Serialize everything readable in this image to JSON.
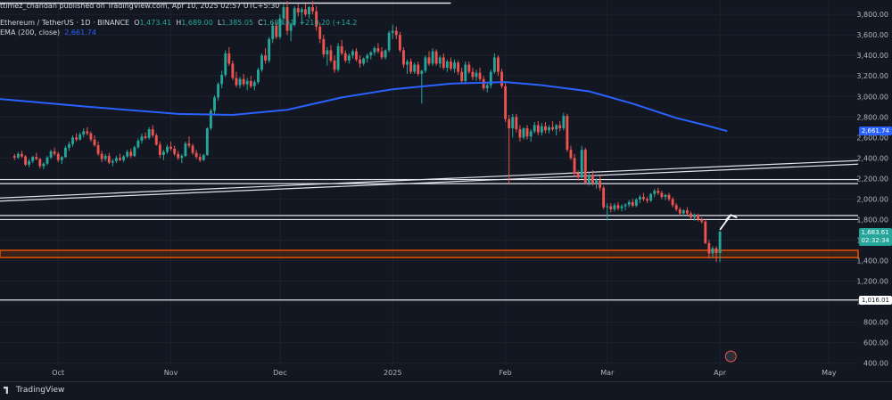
{
  "header": {
    "publisher_line": "ttimez_chandan published on TradingView.com, Apr 10, 2025 02:57 UTC+5:30",
    "symbol": "Ethereum / TetherUS · 1D · BINANCE",
    "open_label": "O",
    "open": "1,473.41",
    "high_label": "H",
    "high": "1,689.00",
    "low_label": "L",
    "low": "1,385.05",
    "close_label": "C",
    "close": "1,683.61",
    "change": "+210.20 (+14.2",
    "ema_label": "EMA (200, close)",
    "ema_value": "2,661.74"
  },
  "footer": {
    "brand": "TradingView"
  },
  "colors": {
    "bg": "#131722",
    "up": "#26a69a",
    "down": "#ef5350",
    "ema": "#2962ff",
    "zone": "#e65100",
    "grid": "#1e222d",
    "text": "#b2b5be"
  },
  "badges": {
    "ema": "2,661.74",
    "price": "1,683.61",
    "countdown": "02:32:34",
    "level": "1,016.01"
  },
  "chart_data": {
    "type": "candlestick",
    "title": "Ethereum / TetherUS · 1D · BINANCE",
    "y_ticks": [
      "3,800.00",
      "3,600.00",
      "3,400.00",
      "3,200.00",
      "3,000.00",
      "2,800.00",
      "2,600.00",
      "2,400.00",
      "2,200.00",
      "2,000.00",
      "1,800.00",
      "1,600.00",
      "1,400.00",
      "1,200.00",
      "1,000.00",
      "800.00",
      "600.00",
      "400.00"
    ],
    "y_tick_values": [
      3800,
      3600,
      3400,
      3200,
      3000,
      2800,
      2600,
      2400,
      2200,
      2000,
      1800,
      1600,
      1400,
      1200,
      1000,
      800,
      600,
      400
    ],
    "x_ticks": [
      "Oct",
      "Nov",
      "Dec",
      "2025",
      "Feb",
      "Mar",
      "Apr",
      "May"
    ],
    "x_tick_days": [
      12,
      43,
      73,
      104,
      135,
      163,
      194,
      224
    ],
    "ylim": [
      380,
      3940
    ],
    "xlim": [
      -4,
      232
    ],
    "ema200": [
      [
        -4,
        2975
      ],
      [
        20,
        2900
      ],
      [
        45,
        2830
      ],
      [
        60,
        2820
      ],
      [
        75,
        2870
      ],
      [
        90,
        2990
      ],
      [
        104,
        3070
      ],
      [
        120,
        3125
      ],
      [
        135,
        3140
      ],
      [
        145,
        3110
      ],
      [
        158,
        3050
      ],
      [
        170,
        2930
      ],
      [
        182,
        2790
      ],
      [
        190,
        2720
      ],
      [
        196,
        2661.74
      ]
    ],
    "support_zone": [
      1430,
      1500
    ],
    "horizontal_levels": [
      1800,
      1840,
      2150,
      2190,
      1016.01
    ],
    "trend_channel": [
      [
        [
          -4,
          1980
        ],
        [
          232,
          2340
        ]
      ],
      [
        [
          -4,
          2010
        ],
        [
          232,
          2375
        ]
      ]
    ],
    "top_box_level": 3910,
    "arrow": {
      "from": [
        194,
        1700
      ],
      "to": [
        197,
        1845
      ]
    },
    "candles": [
      [
        0,
        2420,
        2440,
        2380,
        2405
      ],
      [
        1,
        2405,
        2460,
        2390,
        2440
      ],
      [
        2,
        2440,
        2470,
        2400,
        2415
      ],
      [
        3,
        2415,
        2430,
        2320,
        2335
      ],
      [
        4,
        2335,
        2390,
        2310,
        2370
      ],
      [
        5,
        2370,
        2420,
        2350,
        2410
      ],
      [
        6,
        2410,
        2450,
        2380,
        2390
      ],
      [
        7,
        2390,
        2400,
        2300,
        2320
      ],
      [
        8,
        2320,
        2360,
        2290,
        2345
      ],
      [
        9,
        2345,
        2420,
        2330,
        2405
      ],
      [
        10,
        2405,
        2480,
        2390,
        2465
      ],
      [
        11,
        2465,
        2500,
        2420,
        2440
      ],
      [
        12,
        2440,
        2460,
        2360,
        2380
      ],
      [
        13,
        2380,
        2420,
        2340,
        2410
      ],
      [
        14,
        2410,
        2520,
        2400,
        2500
      ],
      [
        15,
        2500,
        2560,
        2470,
        2535
      ],
      [
        16,
        2535,
        2620,
        2510,
        2600
      ],
      [
        17,
        2600,
        2640,
        2560,
        2580
      ],
      [
        18,
        2580,
        2650,
        2570,
        2630
      ],
      [
        19,
        2630,
        2690,
        2600,
        2660
      ],
      [
        20,
        2660,
        2700,
        2620,
        2640
      ],
      [
        21,
        2640,
        2660,
        2560,
        2580
      ],
      [
        22,
        2580,
        2620,
        2510,
        2525
      ],
      [
        23,
        2525,
        2560,
        2420,
        2440
      ],
      [
        24,
        2440,
        2470,
        2360,
        2390
      ],
      [
        25,
        2390,
        2440,
        2370,
        2420
      ],
      [
        26,
        2420,
        2450,
        2340,
        2355
      ],
      [
        27,
        2355,
        2390,
        2320,
        2370
      ],
      [
        28,
        2370,
        2420,
        2350,
        2400
      ],
      [
        29,
        2400,
        2440,
        2370,
        2380
      ],
      [
        30,
        2380,
        2430,
        2360,
        2415
      ],
      [
        31,
        2415,
        2480,
        2400,
        2460
      ],
      [
        32,
        2460,
        2490,
        2400,
        2420
      ],
      [
        33,
        2420,
        2520,
        2410,
        2505
      ],
      [
        34,
        2505,
        2590,
        2490,
        2570
      ],
      [
        35,
        2570,
        2640,
        2540,
        2610
      ],
      [
        36,
        2610,
        2650,
        2580,
        2595
      ],
      [
        37,
        2595,
        2700,
        2580,
        2680
      ],
      [
        38,
        2680,
        2720,
        2600,
        2620
      ],
      [
        39,
        2620,
        2640,
        2520,
        2530
      ],
      [
        40,
        2530,
        2560,
        2400,
        2430
      ],
      [
        41,
        2430,
        2480,
        2380,
        2460
      ],
      [
        42,
        2460,
        2530,
        2440,
        2510
      ],
      [
        43,
        2510,
        2560,
        2470,
        2490
      ],
      [
        44,
        2490,
        2520,
        2420,
        2440
      ],
      [
        45,
        2440,
        2470,
        2380,
        2400
      ],
      [
        46,
        2400,
        2440,
        2350,
        2420
      ],
      [
        47,
        2420,
        2560,
        2410,
        2540
      ],
      [
        48,
        2540,
        2610,
        2500,
        2520
      ],
      [
        49,
        2520,
        2540,
        2430,
        2450
      ],
      [
        50,
        2450,
        2480,
        2390,
        2410
      ],
      [
        51,
        2410,
        2440,
        2360,
        2380
      ],
      [
        52,
        2380,
        2440,
        2370,
        2430
      ],
      [
        53,
        2430,
        2700,
        2420,
        2690
      ],
      [
        54,
        2690,
        2880,
        2670,
        2860
      ],
      [
        55,
        2860,
        3010,
        2830,
        2990
      ],
      [
        56,
        2990,
        3140,
        2960,
        3120
      ],
      [
        57,
        3120,
        3250,
        3080,
        3210
      ],
      [
        58,
        3210,
        3450,
        3190,
        3420
      ],
      [
        59,
        3420,
        3480,
        3300,
        3320
      ],
      [
        60,
        3320,
        3350,
        3160,
        3180
      ],
      [
        61,
        3180,
        3240,
        3090,
        3110
      ],
      [
        62,
        3110,
        3190,
        3080,
        3170
      ],
      [
        63,
        3170,
        3220,
        3100,
        3120
      ],
      [
        64,
        3120,
        3180,
        3060,
        3150
      ],
      [
        65,
        3150,
        3200,
        3080,
        3100
      ],
      [
        66,
        3100,
        3160,
        3060,
        3140
      ],
      [
        67,
        3140,
        3280,
        3120,
        3260
      ],
      [
        68,
        3260,
        3420,
        3240,
        3400
      ],
      [
        69,
        3400,
        3470,
        3320,
        3350
      ],
      [
        70,
        3350,
        3580,
        3330,
        3560
      ],
      [
        71,
        3560,
        3720,
        3520,
        3690
      ],
      [
        72,
        3690,
        3720,
        3560,
        3580
      ],
      [
        73,
        3580,
        3800,
        3560,
        3760
      ],
      [
        74,
        3760,
        3900,
        3700,
        3870
      ],
      [
        75,
        3870,
        3930,
        3600,
        3640
      ],
      [
        76,
        3640,
        3720,
        3540,
        3700
      ],
      [
        77,
        3700,
        3880,
        3680,
        3860
      ],
      [
        78,
        3860,
        3900,
        3780,
        3820
      ],
      [
        79,
        3820,
        3870,
        3700,
        3850
      ],
      [
        80,
        3850,
        3900,
        3780,
        3800
      ],
      [
        81,
        3800,
        3880,
        3760,
        3870
      ],
      [
        82,
        3870,
        3930,
        3800,
        3830
      ],
      [
        83,
        3830,
        3880,
        3640,
        3680
      ],
      [
        84,
        3680,
        3720,
        3520,
        3560
      ],
      [
        85,
        3560,
        3600,
        3380,
        3410
      ],
      [
        86,
        3410,
        3480,
        3300,
        3450
      ],
      [
        87,
        3450,
        3500,
        3330,
        3350
      ],
      [
        88,
        3350,
        3400,
        3230,
        3260
      ],
      [
        89,
        3260,
        3520,
        3240,
        3490
      ],
      [
        90,
        3490,
        3550,
        3400,
        3420
      ],
      [
        91,
        3420,
        3450,
        3330,
        3350
      ],
      [
        92,
        3350,
        3420,
        3320,
        3400
      ],
      [
        93,
        3400,
        3460,
        3370,
        3440
      ],
      [
        94,
        3440,
        3470,
        3340,
        3360
      ],
      [
        95,
        3360,
        3400,
        3280,
        3320
      ],
      [
        96,
        3320,
        3380,
        3300,
        3370
      ],
      [
        97,
        3370,
        3420,
        3330,
        3400
      ],
      [
        98,
        3400,
        3440,
        3360,
        3430
      ],
      [
        99,
        3430,
        3490,
        3400,
        3470
      ],
      [
        100,
        3470,
        3520,
        3420,
        3440
      ],
      [
        101,
        3440,
        3480,
        3360,
        3380
      ],
      [
        102,
        3380,
        3460,
        3360,
        3450
      ],
      [
        103,
        3450,
        3640,
        3430,
        3620
      ],
      [
        104,
        3620,
        3700,
        3560,
        3640
      ],
      [
        105,
        3640,
        3680,
        3560,
        3600
      ],
      [
        106,
        3600,
        3630,
        3430,
        3450
      ],
      [
        107,
        3450,
        3480,
        3280,
        3310
      ],
      [
        108,
        3310,
        3360,
        3220,
        3340
      ],
      [
        109,
        3340,
        3370,
        3220,
        3240
      ],
      [
        110,
        3240,
        3330,
        3220,
        3310
      ],
      [
        111,
        3310,
        3340,
        3200,
        3220
      ],
      [
        112,
        3220,
        3260,
        2930,
        3250
      ],
      [
        113,
        3250,
        3400,
        3230,
        3380
      ],
      [
        114,
        3380,
        3440,
        3300,
        3320
      ],
      [
        115,
        3320,
        3470,
        3300,
        3440
      ],
      [
        116,
        3440,
        3460,
        3300,
        3320
      ],
      [
        117,
        3320,
        3400,
        3280,
        3380
      ],
      [
        118,
        3380,
        3420,
        3260,
        3280
      ],
      [
        119,
        3280,
        3360,
        3240,
        3340
      ],
      [
        120,
        3340,
        3380,
        3250,
        3270
      ],
      [
        121,
        3270,
        3360,
        3230,
        3330
      ],
      [
        122,
        3330,
        3350,
        3210,
        3240
      ],
      [
        123,
        3240,
        3280,
        3120,
        3150
      ],
      [
        124,
        3150,
        3340,
        3130,
        3310
      ],
      [
        125,
        3310,
        3340,
        3220,
        3240
      ],
      [
        126,
        3240,
        3280,
        3160,
        3190
      ],
      [
        127,
        3190,
        3260,
        3150,
        3230
      ],
      [
        128,
        3230,
        3280,
        3150,
        3170
      ],
      [
        129,
        3170,
        3200,
        3060,
        3080
      ],
      [
        130,
        3080,
        3140,
        3040,
        3110
      ],
      [
        131,
        3110,
        3260,
        3080,
        3240
      ],
      [
        132,
        3240,
        3420,
        3220,
        3380
      ],
      [
        133,
        3380,
        3400,
        3200,
        3240
      ],
      [
        134,
        3240,
        3270,
        3080,
        3100
      ],
      [
        135,
        3100,
        3140,
        2750,
        2780
      ],
      [
        136,
        2780,
        2820,
        2150,
        2690
      ],
      [
        137,
        2690,
        2830,
        2600,
        2800
      ],
      [
        138,
        2800,
        2830,
        2650,
        2680
      ],
      [
        139,
        2680,
        2720,
        2560,
        2600
      ],
      [
        140,
        2600,
        2700,
        2580,
        2690
      ],
      [
        141,
        2690,
        2720,
        2580,
        2610
      ],
      [
        142,
        2610,
        2680,
        2560,
        2660
      ],
      [
        143,
        2660,
        2750,
        2640,
        2720
      ],
      [
        144,
        2720,
        2760,
        2620,
        2650
      ],
      [
        145,
        2650,
        2740,
        2620,
        2710
      ],
      [
        146,
        2710,
        2750,
        2640,
        2670
      ],
      [
        147,
        2670,
        2720,
        2640,
        2700
      ],
      [
        148,
        2700,
        2760,
        2660,
        2680
      ],
      [
        149,
        2680,
        2730,
        2620,
        2720
      ],
      [
        150,
        2720,
        2760,
        2660,
        2690
      ],
      [
        151,
        2690,
        2840,
        2670,
        2810
      ],
      [
        152,
        2810,
        2830,
        2460,
        2480
      ],
      [
        153,
        2480,
        2520,
        2380,
        2400
      ],
      [
        154,
        2400,
        2440,
        2220,
        2250
      ],
      [
        155,
        2250,
        2280,
        2180,
        2210
      ],
      [
        156,
        2210,
        2520,
        2200,
        2480
      ],
      [
        157,
        2480,
        2500,
        2140,
        2160
      ],
      [
        158,
        2160,
        2260,
        2130,
        2230
      ],
      [
        159,
        2230,
        2280,
        2130,
        2150
      ],
      [
        160,
        2150,
        2200,
        2100,
        2180
      ],
      [
        161,
        2180,
        2230,
        2080,
        2110
      ],
      [
        162,
        2110,
        2130,
        1900,
        1920
      ],
      [
        163,
        1920,
        1960,
        1790,
        1930
      ],
      [
        164,
        1930,
        1960,
        1870,
        1900
      ],
      [
        165,
        1900,
        1960,
        1880,
        1940
      ],
      [
        166,
        1940,
        1970,
        1890,
        1910
      ],
      [
        167,
        1910,
        1950,
        1880,
        1930
      ],
      [
        168,
        1930,
        1960,
        1890,
        1945
      ],
      [
        169,
        1945,
        1990,
        1920,
        1970
      ],
      [
        170,
        1970,
        2000,
        1920,
        1935
      ],
      [
        171,
        1935,
        2010,
        1920,
        1995
      ],
      [
        172,
        1995,
        2040,
        1960,
        2020
      ],
      [
        173,
        2020,
        2060,
        1980,
        2000
      ],
      [
        174,
        2000,
        2020,
        1960,
        1985
      ],
      [
        175,
        1985,
        2060,
        1970,
        2050
      ],
      [
        176,
        2050,
        2100,
        2020,
        2080
      ],
      [
        177,
        2080,
        2110,
        2040,
        2060
      ],
      [
        178,
        2060,
        2080,
        2000,
        2020
      ],
      [
        179,
        2020,
        2050,
        1990,
        2040
      ],
      [
        180,
        2040,
        2060,
        1980,
        2000
      ],
      [
        181,
        2000,
        2020,
        1920,
        1940
      ],
      [
        182,
        1940,
        1960,
        1880,
        1900
      ],
      [
        183,
        1900,
        1920,
        1840,
        1860
      ],
      [
        184,
        1860,
        1900,
        1830,
        1890
      ],
      [
        185,
        1890,
        1920,
        1840,
        1860
      ],
      [
        186,
        1860,
        1880,
        1800,
        1820
      ],
      [
        187,
        1820,
        1860,
        1790,
        1845
      ],
      [
        188,
        1845,
        1860,
        1780,
        1800
      ],
      [
        189,
        1800,
        1820,
        1760,
        1780
      ],
      [
        190,
        1780,
        1800,
        1560,
        1570
      ],
      [
        191,
        1570,
        1600,
        1420,
        1470
      ],
      [
        192,
        1470,
        1540,
        1430,
        1520
      ],
      [
        193,
        1520,
        1540,
        1385,
        1473
      ],
      [
        194,
        1473.41,
        1689,
        1385.05,
        1683.61
      ]
    ]
  }
}
